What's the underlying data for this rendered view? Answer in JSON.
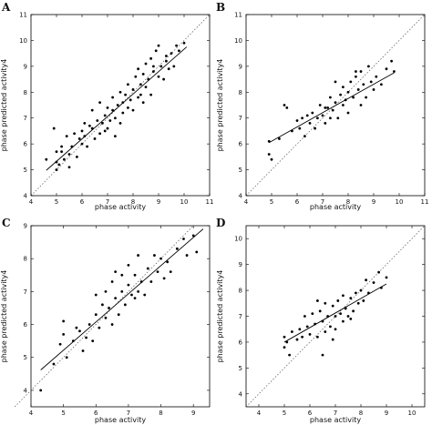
{
  "chart_data": [
    {
      "type": "scatter",
      "panel_label": "A",
      "xlabel": "phase activity",
      "ylabel": "phase predicted activity4",
      "xlim": [
        4,
        11
      ],
      "ylim": [
        4,
        11
      ],
      "xticks": [
        "4",
        "5",
        "6",
        "7",
        "8",
        "9",
        "10",
        "11"
      ],
      "yticks": [
        "4",
        "5",
        "6",
        "7",
        "8",
        "9",
        "10",
        "11"
      ],
      "identity_line": [
        [
          4,
          4
        ],
        [
          11,
          11
        ]
      ],
      "fit_line": [
        [
          4.6,
          4.98
        ],
        [
          10.1,
          9.75
        ]
      ],
      "points": [
        [
          4.6,
          5.4
        ],
        [
          4.9,
          6.6
        ],
        [
          5.0,
          5.3
        ],
        [
          5.0,
          5.7
        ],
        [
          5.0,
          5.0
        ],
        [
          5.1,
          5.2
        ],
        [
          5.2,
          5.9
        ],
        [
          5.3,
          5.4
        ],
        [
          5.4,
          6.3
        ],
        [
          5.5,
          5.1
        ],
        [
          5.5,
          5.6
        ],
        [
          5.6,
          5.9
        ],
        [
          5.7,
          6.4
        ],
        [
          5.8,
          5.5
        ],
        [
          5.9,
          6.2
        ],
        [
          6.0,
          6.5
        ],
        [
          6.0,
          6.0
        ],
        [
          6.1,
          6.8
        ],
        [
          6.2,
          5.9
        ],
        [
          6.3,
          6.7
        ],
        [
          6.4,
          7.3
        ],
        [
          6.5,
          6.2
        ],
        [
          6.6,
          6.9
        ],
        [
          6.7,
          6.4
        ],
        [
          6.7,
          7.6
        ],
        [
          6.8,
          6.8
        ],
        [
          6.9,
          7.1
        ],
        [
          7.0,
          6.6
        ],
        [
          7.0,
          7.4
        ],
        [
          7.1,
          6.9
        ],
        [
          7.2,
          7.8
        ],
        [
          7.3,
          7.0
        ],
        [
          7.3,
          6.3
        ],
        [
          7.4,
          7.5
        ],
        [
          7.5,
          6.8
        ],
        [
          7.5,
          8.0
        ],
        [
          7.6,
          7.2
        ],
        [
          7.7,
          7.9
        ],
        [
          7.8,
          7.4
        ],
        [
          7.8,
          8.3
        ],
        [
          7.9,
          7.7
        ],
        [
          8.0,
          8.1
        ],
        [
          8.0,
          7.3
        ],
        [
          8.1,
          8.6
        ],
        [
          8.2,
          7.8
        ],
        [
          8.2,
          8.9
        ],
        [
          8.3,
          8.3
        ],
        [
          8.4,
          7.6
        ],
        [
          8.4,
          8.7
        ],
        [
          8.5,
          8.2
        ],
        [
          8.5,
          9.1
        ],
        [
          8.6,
          8.5
        ],
        [
          8.7,
          7.9
        ],
        [
          8.7,
          9.3
        ],
        [
          8.8,
          8.8
        ],
        [
          8.9,
          9.6
        ],
        [
          9.0,
          8.6
        ],
        [
          9.0,
          9.8
        ],
        [
          9.1,
          9.0
        ],
        [
          9.2,
          8.5
        ],
        [
          9.3,
          9.4
        ],
        [
          9.4,
          8.9
        ],
        [
          9.5,
          9.5
        ],
        [
          9.6,
          9.0
        ],
        [
          9.7,
          9.8
        ],
        [
          9.8,
          9.6
        ],
        [
          10.0,
          9.9
        ],
        [
          5.2,
          5.7
        ],
        [
          6.1,
          6.3
        ],
        [
          6.9,
          6.5
        ],
        [
          7.6,
          7.6
        ],
        [
          8.3,
          7.9
        ],
        [
          8.8,
          9.0
        ],
        [
          9.3,
          9.2
        ],
        [
          7.2,
          7.3
        ],
        [
          6.4,
          6.6
        ]
      ]
    },
    {
      "type": "scatter",
      "panel_label": "B",
      "xlabel": "phase activity",
      "ylabel": "phase predicted activity4",
      "xlim": [
        4,
        11
      ],
      "ylim": [
        4,
        11
      ],
      "xticks": [
        "4",
        "5",
        "6",
        "7",
        "8",
        "9",
        "10",
        "11"
      ],
      "yticks": [
        "4",
        "5",
        "6",
        "7",
        "8",
        "9",
        "10",
        "11"
      ],
      "identity_line": [
        [
          4,
          4
        ],
        [
          11,
          11
        ]
      ],
      "fit_line": [
        [
          4.9,
          6.05
        ],
        [
          9.8,
          8.75
        ]
      ],
      "points": [
        [
          4.9,
          6.1
        ],
        [
          4.9,
          5.6
        ],
        [
          5.0,
          5.4
        ],
        [
          5.3,
          6.2
        ],
        [
          5.5,
          7.5
        ],
        [
          5.6,
          7.4
        ],
        [
          5.8,
          6.5
        ],
        [
          6.0,
          6.9
        ],
        [
          6.2,
          7.0
        ],
        [
          6.3,
          6.3
        ],
        [
          6.4,
          7.1
        ],
        [
          6.5,
          6.8
        ],
        [
          6.6,
          7.2
        ],
        [
          6.7,
          6.6
        ],
        [
          6.8,
          7.0
        ],
        [
          6.9,
          7.5
        ],
        [
          7.0,
          7.1
        ],
        [
          7.1,
          6.8
        ],
        [
          7.2,
          7.4
        ],
        [
          7.3,
          7.0
        ],
        [
          7.3,
          7.8
        ],
        [
          7.4,
          7.3
        ],
        [
          7.5,
          7.6
        ],
        [
          7.6,
          7.0
        ],
        [
          7.7,
          7.9
        ],
        [
          7.8,
          7.5
        ],
        [
          7.8,
          8.2
        ],
        [
          7.9,
          7.7
        ],
        [
          8.0,
          8.0
        ],
        [
          8.0,
          7.2
        ],
        [
          8.1,
          8.4
        ],
        [
          8.2,
          7.8
        ],
        [
          8.3,
          8.6
        ],
        [
          8.4,
          8.1
        ],
        [
          8.5,
          7.5
        ],
        [
          8.5,
          8.8
        ],
        [
          8.6,
          8.3
        ],
        [
          8.7,
          7.8
        ],
        [
          8.8,
          9.0
        ],
        [
          8.9,
          8.4
        ],
        [
          9.0,
          8.1
        ],
        [
          9.1,
          8.6
        ],
        [
          9.3,
          8.3
        ],
        [
          9.5,
          8.9
        ],
        [
          9.7,
          9.2
        ],
        [
          9.8,
          8.8
        ],
        [
          6.1,
          6.6
        ],
        [
          7.5,
          8.4
        ],
        [
          8.3,
          8.8
        ],
        [
          7.1,
          7.4
        ]
      ]
    },
    {
      "type": "scatter",
      "panel_label": "C",
      "xlabel": "phase activity",
      "ylabel": "phase predicted activity4",
      "xlim": [
        4,
        9.5
      ],
      "ylim": [
        3.5,
        9
      ],
      "xticks": [
        "4",
        "5",
        "6",
        "7",
        "8",
        "9"
      ],
      "yticks": [
        "4",
        "5",
        "6",
        "7",
        "8",
        "9"
      ],
      "identity_line": [
        [
          3.5,
          3.5
        ],
        [
          9,
          9
        ]
      ],
      "fit_line": [
        [
          4.3,
          4.62
        ],
        [
          9.3,
          8.9
        ]
      ],
      "points": [
        [
          4.3,
          4.0
        ],
        [
          4.7,
          4.8
        ],
        [
          4.9,
          5.4
        ],
        [
          5.0,
          5.7
        ],
        [
          5.0,
          6.1
        ],
        [
          5.1,
          5.0
        ],
        [
          5.3,
          5.5
        ],
        [
          5.5,
          5.8
        ],
        [
          5.6,
          5.2
        ],
        [
          5.7,
          5.6
        ],
        [
          5.8,
          6.0
        ],
        [
          5.9,
          5.5
        ],
        [
          6.0,
          6.3
        ],
        [
          6.1,
          5.9
        ],
        [
          6.2,
          6.6
        ],
        [
          6.3,
          6.2
        ],
        [
          6.3,
          7.0
        ],
        [
          6.4,
          6.5
        ],
        [
          6.5,
          6.0
        ],
        [
          6.5,
          7.3
        ],
        [
          6.6,
          6.8
        ],
        [
          6.7,
          6.3
        ],
        [
          6.8,
          7.5
        ],
        [
          6.8,
          7.0
        ],
        [
          6.9,
          6.6
        ],
        [
          7.0,
          7.2
        ],
        [
          7.0,
          7.8
        ],
        [
          7.1,
          6.9
        ],
        [
          7.2,
          7.5
        ],
        [
          7.3,
          7.0
        ],
        [
          7.3,
          8.1
        ],
        [
          7.4,
          7.3
        ],
        [
          7.5,
          6.9
        ],
        [
          7.6,
          7.7
        ],
        [
          7.7,
          7.3
        ],
        [
          7.8,
          8.1
        ],
        [
          7.9,
          7.6
        ],
        [
          8.0,
          8.0
        ],
        [
          8.1,
          7.4
        ],
        [
          8.2,
          7.9
        ],
        [
          8.3,
          7.6
        ],
        [
          8.5,
          8.3
        ],
        [
          8.7,
          8.6
        ],
        [
          8.8,
          8.1
        ],
        [
          9.0,
          8.7
        ],
        [
          9.1,
          8.2
        ],
        [
          6.0,
          6.9
        ],
        [
          6.6,
          7.6
        ],
        [
          7.2,
          6.8
        ],
        [
          5.4,
          5.9
        ]
      ]
    },
    {
      "type": "scatter",
      "panel_label": "D",
      "xlabel": "phase activity",
      "ylabel": "phase predicted activity4",
      "xlim": [
        3.5,
        10.5
      ],
      "ylim": [
        3.5,
        10.5
      ],
      "xticks": [
        "4",
        "5",
        "6",
        "7",
        "8",
        "9",
        "10"
      ],
      "yticks": [
        "4",
        "5",
        "6",
        "7",
        "8",
        "9",
        "10"
      ],
      "identity_line": [
        [
          3.5,
          3.5
        ],
        [
          10.5,
          10.5
        ]
      ],
      "fit_line": [
        [
          5.0,
          6.0
        ],
        [
          9.0,
          8.25
        ]
      ],
      "points": [
        [
          5.0,
          5.8
        ],
        [
          5.0,
          6.2
        ],
        [
          5.1,
          6.0
        ],
        [
          5.2,
          5.5
        ],
        [
          5.3,
          6.4
        ],
        [
          5.5,
          6.1
        ],
        [
          5.6,
          6.5
        ],
        [
          5.7,
          6.2
        ],
        [
          5.8,
          7.0
        ],
        [
          5.9,
          6.6
        ],
        [
          6.0,
          6.3
        ],
        [
          6.1,
          7.1
        ],
        [
          6.2,
          6.7
        ],
        [
          6.3,
          6.2
        ],
        [
          6.4,
          7.2
        ],
        [
          6.5,
          6.8
        ],
        [
          6.6,
          7.5
        ],
        [
          6.6,
          6.4
        ],
        [
          6.7,
          7.0
        ],
        [
          6.8,
          6.6
        ],
        [
          6.9,
          7.4
        ],
        [
          7.0,
          7.0
        ],
        [
          7.0,
          6.5
        ],
        [
          7.1,
          7.6
        ],
        [
          7.2,
          7.1
        ],
        [
          7.3,
          6.8
        ],
        [
          7.3,
          7.8
        ],
        [
          7.4,
          7.3
        ],
        [
          7.5,
          7.0
        ],
        [
          7.6,
          7.7
        ],
        [
          7.7,
          7.2
        ],
        [
          7.8,
          7.9
        ],
        [
          7.9,
          7.5
        ],
        [
          8.0,
          8.0
        ],
        [
          8.1,
          7.6
        ],
        [
          8.2,
          8.4
        ],
        [
          8.3,
          7.9
        ],
        [
          8.5,
          8.3
        ],
        [
          8.7,
          8.7
        ],
        [
          8.8,
          8.1
        ],
        [
          9.0,
          8.5
        ],
        [
          6.5,
          5.5
        ],
        [
          6.9,
          6.1
        ],
        [
          7.6,
          6.9
        ],
        [
          6.3,
          7.6
        ]
      ]
    }
  ]
}
